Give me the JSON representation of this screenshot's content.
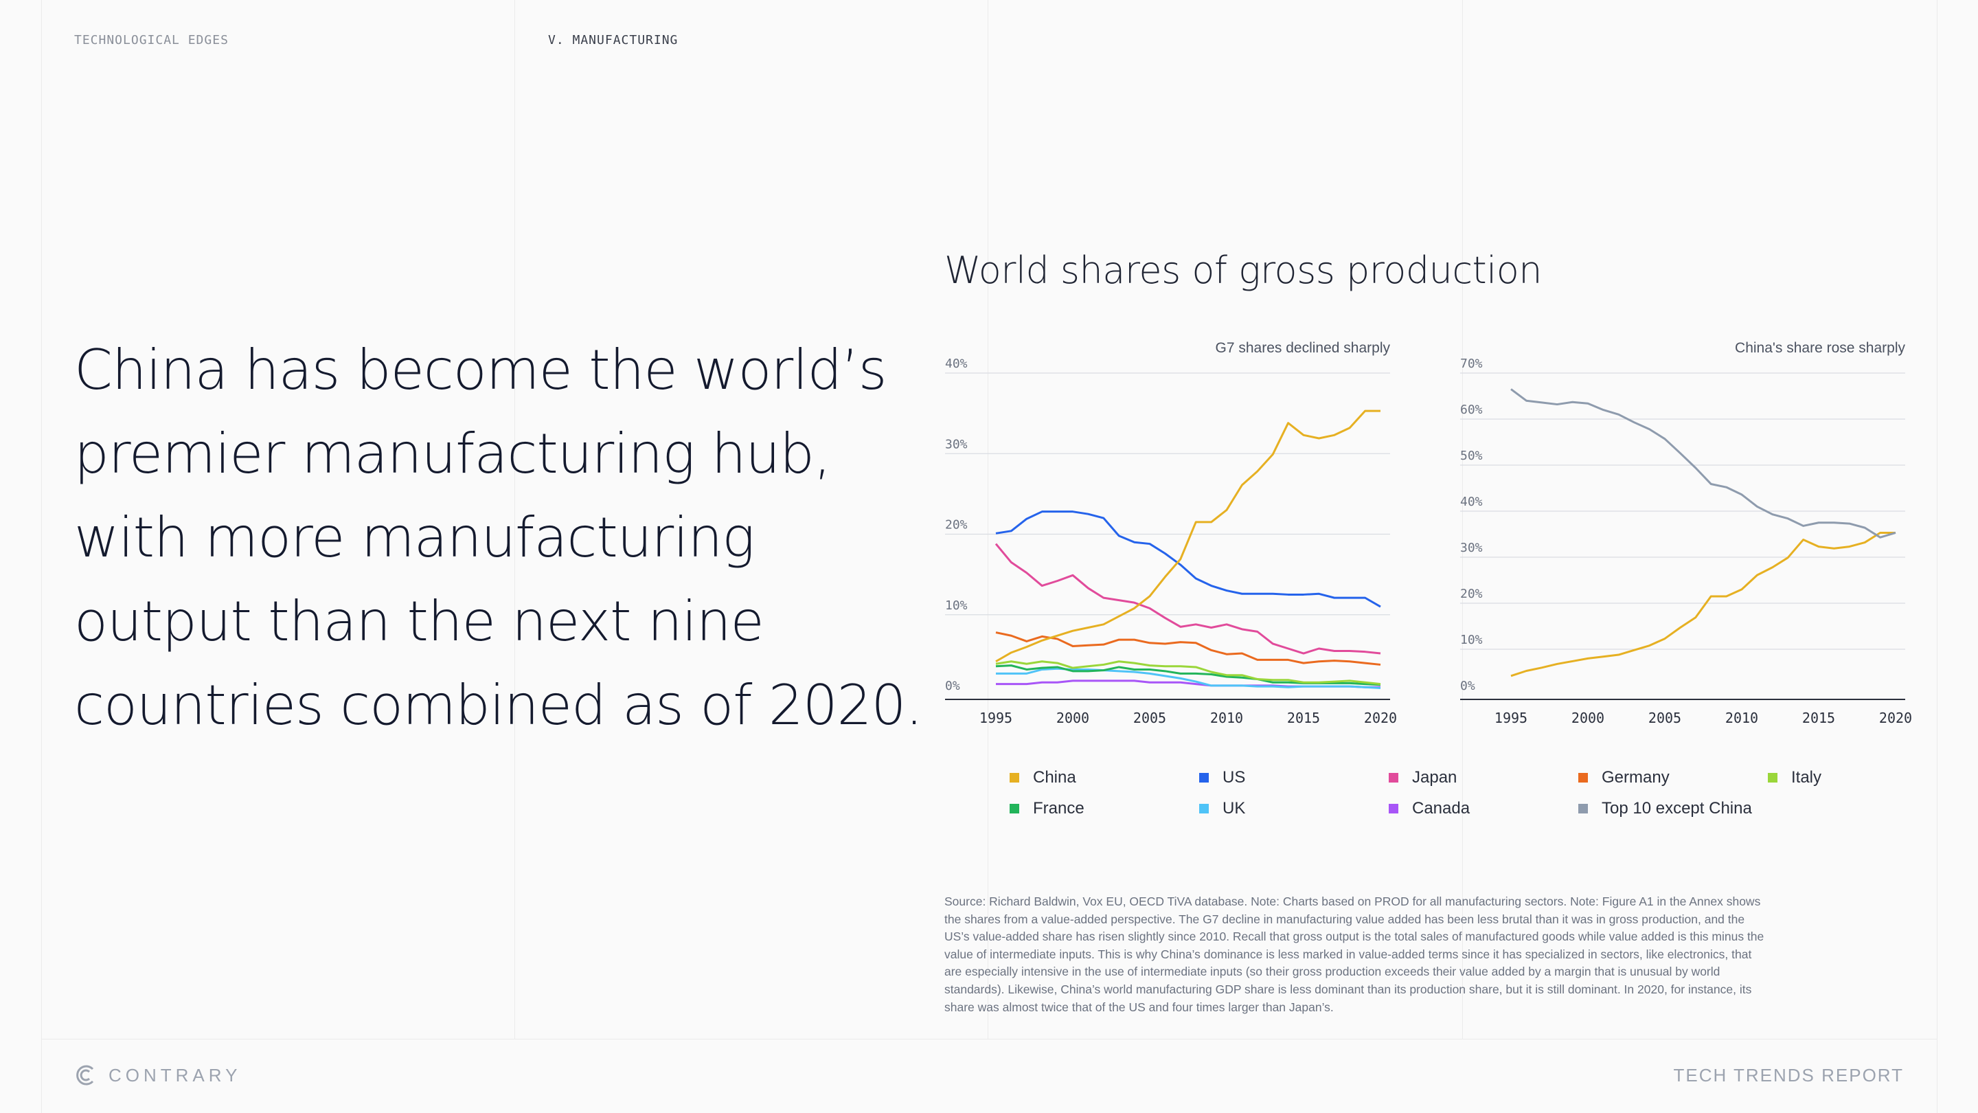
{
  "header": {
    "section": "TECHNOLOGICAL EDGES",
    "chapter": "V. MANUFACTURING"
  },
  "headline": "China has become the world’s premier manufacturing hub, with more manufacturing output than the next nine countries combined as of 2020.",
  "chart_title": "World shares of gross production",
  "chart_data": [
    {
      "type": "line",
      "title": "G7 shares declined sharply",
      "x": [
        1995,
        1996,
        1997,
        1998,
        1999,
        2000,
        2001,
        2002,
        2003,
        2004,
        2005,
        2006,
        2007,
        2008,
        2009,
        2010,
        2011,
        2012,
        2013,
        2014,
        2015,
        2016,
        2017,
        2018,
        2019,
        2020
      ],
      "ylim": [
        0,
        40
      ],
      "yticks": [
        "0%",
        "10%",
        "20%",
        "30%",
        "40%"
      ],
      "xticks": [
        "1995",
        "2000",
        "2005",
        "2010",
        "2015",
        "2020"
      ],
      "grid": true,
      "series": [
        {
          "name": "China",
          "color": "#e6b022",
          "values": [
            4.2,
            5.3,
            6.0,
            6.8,
            7.4,
            8.0,
            8.4,
            8.8,
            9.8,
            10.8,
            12.3,
            14.7,
            16.9,
            21.5,
            21.5,
            23.0,
            26.1,
            27.8,
            29.9,
            33.8,
            32.3,
            31.9,
            32.3,
            33.2,
            35.3,
            35.3
          ]
        },
        {
          "name": "US",
          "color": "#2563eb",
          "values": [
            20.1,
            20.4,
            21.9,
            22.8,
            22.8,
            22.8,
            22.5,
            22.0,
            19.8,
            19.0,
            18.8,
            17.6,
            16.2,
            14.5,
            13.6,
            13.0,
            12.6,
            12.6,
            12.6,
            12.5,
            12.5,
            12.6,
            12.1,
            12.1,
            12.1,
            11.0
          ]
        },
        {
          "name": "Japan",
          "color": "#e14b9b",
          "values": [
            18.8,
            16.5,
            15.2,
            13.6,
            14.2,
            14.9,
            13.3,
            12.1,
            11.8,
            11.5,
            10.8,
            9.6,
            8.5,
            8.8,
            8.4,
            8.8,
            8.2,
            7.9,
            6.4,
            5.8,
            5.2,
            5.8,
            5.5,
            5.5,
            5.4,
            5.2
          ]
        },
        {
          "name": "Germany",
          "color": "#ea6a1f",
          "values": [
            7.8,
            7.4,
            6.7,
            7.3,
            7.0,
            6.1,
            6.2,
            6.3,
            6.9,
            6.9,
            6.5,
            6.4,
            6.6,
            6.5,
            5.6,
            5.1,
            5.2,
            4.4,
            4.4,
            4.4,
            4.0,
            4.2,
            4.3,
            4.2,
            4.0,
            3.8
          ]
        },
        {
          "name": "Italy",
          "color": "#9ad63a",
          "values": [
            3.9,
            4.2,
            3.9,
            4.2,
            4.0,
            3.4,
            3.6,
            3.8,
            4.2,
            4.0,
            3.7,
            3.6,
            3.6,
            3.5,
            2.9,
            2.5,
            2.5,
            2.0,
            1.9,
            1.9,
            1.6,
            1.6,
            1.7,
            1.8,
            1.6,
            1.4
          ]
        },
        {
          "name": "France",
          "color": "#22b45a",
          "values": [
            3.6,
            3.7,
            3.2,
            3.4,
            3.5,
            3.0,
            3.0,
            3.1,
            3.5,
            3.2,
            3.2,
            3.0,
            2.7,
            2.7,
            2.6,
            2.3,
            2.2,
            2.0,
            1.6,
            1.6,
            1.5,
            1.5,
            1.5,
            1.5,
            1.4,
            1.3
          ]
        },
        {
          "name": "UK",
          "color": "#4fc3f7",
          "values": [
            2.7,
            2.7,
            2.7,
            3.2,
            3.3,
            3.2,
            3.2,
            3.1,
            3.0,
            2.9,
            2.7,
            2.4,
            2.1,
            1.7,
            1.2,
            1.2,
            1.2,
            1.1,
            1.1,
            1.0,
            1.1,
            1.1,
            1.1,
            1.1,
            1.0,
            0.9
          ]
        },
        {
          "name": "Canada",
          "color": "#a855f7",
          "values": [
            1.4,
            1.4,
            1.4,
            1.6,
            1.6,
            1.8,
            1.8,
            1.8,
            1.8,
            1.8,
            1.6,
            1.6,
            1.6,
            1.4,
            1.2,
            1.2,
            1.2,
            1.2,
            1.2,
            1.1,
            1.1,
            1.1,
            1.1,
            1.1,
            1.0,
            1.0
          ]
        }
      ]
    },
    {
      "type": "line",
      "title": "China's share rose sharply",
      "x": [
        1995,
        1996,
        1997,
        1998,
        1999,
        2000,
        2001,
        2002,
        2003,
        2004,
        2005,
        2006,
        2007,
        2008,
        2009,
        2010,
        2011,
        2012,
        2013,
        2014,
        2015,
        2016,
        2017,
        2018,
        2019,
        2020
      ],
      "ylim": [
        0,
        70
      ],
      "yticks": [
        "0%",
        "10%",
        "20%",
        "30%",
        "40%",
        "50%",
        "60%",
        "70%"
      ],
      "xticks": [
        "1995",
        "2000",
        "2005",
        "2010",
        "2015",
        "2020"
      ],
      "grid": true,
      "series": [
        {
          "name": "Top 10 except China",
          "color": "#8e9bad",
          "values": [
            66.5,
            64.0,
            63.6,
            63.2,
            63.7,
            63.4,
            62.0,
            61.0,
            59.3,
            57.8,
            55.7,
            52.6,
            49.4,
            45.9,
            45.2,
            43.6,
            41.0,
            39.3,
            38.4,
            36.8,
            37.5,
            37.5,
            37.3,
            36.4,
            34.3,
            35.3
          ]
        },
        {
          "name": "China",
          "color": "#e6b022",
          "values": [
            4.2,
            5.3,
            6.0,
            6.8,
            7.4,
            8.0,
            8.4,
            8.8,
            9.8,
            10.8,
            12.3,
            14.7,
            16.9,
            21.5,
            21.5,
            23.0,
            26.1,
            27.8,
            29.9,
            33.8,
            32.3,
            31.9,
            32.3,
            33.2,
            35.3,
            35.3
          ]
        }
      ]
    }
  ],
  "legend": [
    {
      "name": "China",
      "color": "#e6b022"
    },
    {
      "name": "US",
      "color": "#2563eb"
    },
    {
      "name": "Japan",
      "color": "#e14b9b"
    },
    {
      "name": "Germany",
      "color": "#ea6a1f"
    },
    {
      "name": "Italy",
      "color": "#9ad63a"
    },
    {
      "name": "France",
      "color": "#22b45a"
    },
    {
      "name": "UK",
      "color": "#4fc3f7"
    },
    {
      "name": "Canada",
      "color": "#a855f7"
    },
    {
      "name": "Top 10 except China",
      "color": "#8e9bad"
    }
  ],
  "source": "Source: Richard Baldwin, Vox EU, OECD TiVA database. Note: Charts based on PROD for all manufacturing sectors. Note: Figure A1 in the Annex shows the shares from a value-added perspective. The G7 decline in manufacturing value added has been less brutal than it was in gross production, and the US’s value-added share has risen slightly since 2010. Recall that gross output is the total sales of manufactured goods while value added is this minus the value of intermediate inputs. This is why China’s dominance is less marked in value-added terms since it has specialized in sectors, like electronics, that are especially intensive in the use of intermediate inputs (so their gross production exceeds their value added by a margin that is unusual by world standards). Likewise, China’s world manufacturing GDP share is less dominant than its production share, but it is still dominant. In 2020, for instance, its share was almost twice that of the US and four times larger than Japan’s.",
  "footer": {
    "brand": "CONTRARY",
    "report": "TECH TRENDS REPORT"
  }
}
